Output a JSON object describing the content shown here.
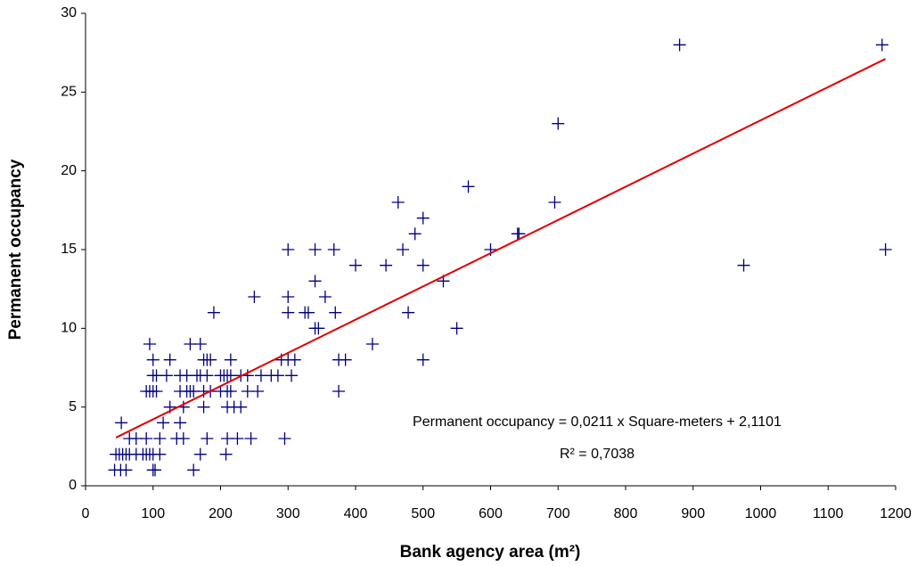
{
  "chart_data": {
    "type": "scatter",
    "xlabel": "Bank agency area (m²)",
    "ylabel": "Permanent occupancy",
    "annotations": [
      "Permanent occupancy = 0,0211 x Square-meters + 2,1101",
      "R² = 0,7038"
    ],
    "xlim": [
      0,
      1200
    ],
    "xticks": [
      0,
      100,
      200,
      300,
      400,
      500,
      600,
      700,
      800,
      900,
      1000,
      1100,
      1200
    ],
    "ylim": [
      0,
      30
    ],
    "yticks": [
      0,
      5,
      10,
      15,
      20,
      25,
      30
    ],
    "grid": false,
    "marker_color": "#000080",
    "x": [
      43,
      52,
      60,
      100,
      103,
      160,
      45,
      50,
      55,
      60,
      65,
      75,
      85,
      90,
      95,
      100,
      110,
      170,
      208,
      65,
      75,
      90,
      110,
      135,
      145,
      180,
      210,
      225,
      245,
      295,
      53,
      115,
      140,
      125,
      145,
      175,
      210,
      220,
      230,
      90,
      95,
      100,
      105,
      140,
      150,
      155,
      160,
      175,
      185,
      200,
      210,
      215,
      240,
      255,
      375,
      100,
      105,
      120,
      140,
      150,
      165,
      170,
      180,
      200,
      205,
      210,
      215,
      230,
      240,
      260,
      275,
      285,
      305,
      100,
      125,
      175,
      180,
      185,
      215,
      290,
      300,
      310,
      375,
      385,
      500,
      95,
      155,
      170,
      425,
      340,
      345,
      550,
      190,
      300,
      325,
      330,
      370,
      478,
      250,
      300,
      355,
      340,
      530,
      400,
      445,
      500,
      975,
      300,
      340,
      368,
      470,
      600,
      1185,
      488,
      640,
      642,
      500,
      463,
      695,
      567,
      700,
      880,
      1180
    ],
    "values": [
      1,
      1,
      1,
      1,
      1,
      1,
      2,
      2,
      2,
      2,
      2,
      2,
      2,
      2,
      2,
      2,
      2,
      2,
      2,
      3,
      3,
      3,
      3,
      3,
      3,
      3,
      3,
      3,
      3,
      3,
      4,
      4,
      4,
      5,
      5,
      5,
      5,
      5,
      5,
      6,
      6,
      6,
      6,
      6,
      6,
      6,
      6,
      6,
      6,
      6,
      6,
      6,
      6,
      6,
      6,
      7,
      7,
      7,
      7,
      7,
      7,
      7,
      7,
      7,
      7,
      7,
      7,
      7,
      7,
      7,
      7,
      7,
      7,
      8,
      8,
      8,
      8,
      8,
      8,
      8,
      8,
      8,
      8,
      8,
      8,
      9,
      9,
      9,
      9,
      10,
      10,
      10,
      11,
      11,
      11,
      11,
      11,
      11,
      12,
      12,
      12,
      13,
      13,
      14,
      14,
      14,
      14,
      15,
      15,
      15,
      15,
      15,
      15,
      16,
      16,
      16,
      17,
      18,
      18,
      19,
      23,
      28,
      28
    ],
    "trendline": {
      "color": "#e00000",
      "x": [
        45,
        1185
      ],
      "values": [
        3.06,
        27.11
      ]
    }
  }
}
